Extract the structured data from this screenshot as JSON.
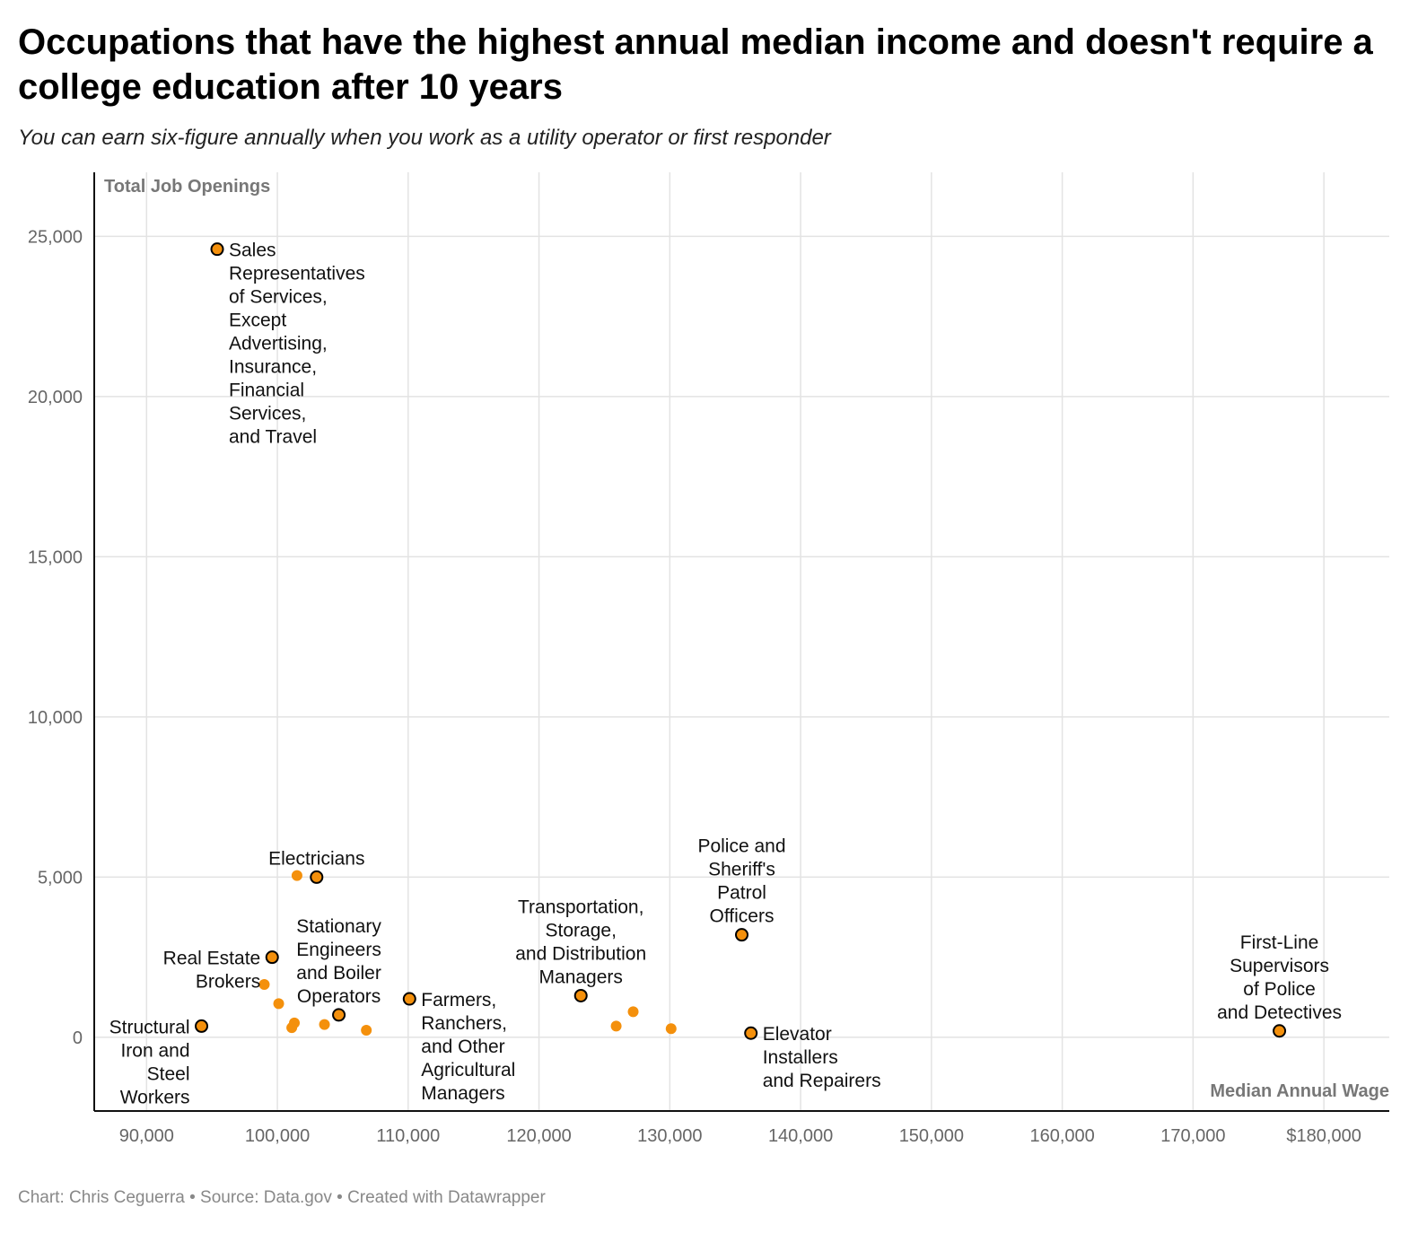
{
  "title": "Occupations that have the highest annual median income and doesn't require a college education after 10 years",
  "subtitle": "You can earn six-figure annually when you work as a utility operator or first responder",
  "footer": "Chart: Chris Ceguerra • Source: Data.gov • Created with Datawrapper",
  "colors": {
    "point": "#f4900c",
    "outline": "#000000",
    "grid": "#e3e3e3"
  },
  "chart_data": {
    "type": "scatter",
    "xlabel": "Median Annual Wage",
    "ylabel": "Total Job Openings",
    "xlim": [
      86000,
      185000
    ],
    "ylim": [
      -2300,
      27000
    ],
    "x_ticks": [
      {
        "value": 90000,
        "label": "90,000"
      },
      {
        "value": 100000,
        "label": "100,000"
      },
      {
        "value": 110000,
        "label": "110,000"
      },
      {
        "value": 120000,
        "label": "120,000"
      },
      {
        "value": 130000,
        "label": "130,000"
      },
      {
        "value": 140000,
        "label": "140,000"
      },
      {
        "value": 150000,
        "label": "150,000"
      },
      {
        "value": 160000,
        "label": "160,000"
      },
      {
        "value": 170000,
        "label": "170,000"
      },
      {
        "value": 180000,
        "label": "$180,000"
      }
    ],
    "y_ticks": [
      {
        "value": 0,
        "label": "0"
      },
      {
        "value": 5000,
        "label": "5,000"
      },
      {
        "value": 10000,
        "label": "10,000"
      },
      {
        "value": 15000,
        "label": "15,000"
      },
      {
        "value": 20000,
        "label": "20,000"
      },
      {
        "value": 25000,
        "label": "25,000"
      }
    ],
    "points": [
      {
        "x": 95400,
        "y": 24600,
        "highlight": true,
        "label": [
          "Sales",
          "Representatives",
          "of Services,",
          "Except",
          "Advertising,",
          "Insurance,",
          "Financial",
          "Services,",
          "and Travel"
        ],
        "label_side": "right"
      },
      {
        "x": 103000,
        "y": 5000,
        "highlight": true,
        "label": [
          "Electricians"
        ],
        "label_side": "above"
      },
      {
        "x": 101500,
        "y": 5050,
        "highlight": false
      },
      {
        "x": 99600,
        "y": 2500,
        "highlight": true,
        "label": [
          "Real Estate",
          "Brokers"
        ],
        "label_side": "left"
      },
      {
        "x": 104700,
        "y": 700,
        "highlight": true,
        "label": [
          "Stationary",
          "Engineers",
          "and Boiler",
          "Operators"
        ],
        "label_side": "above"
      },
      {
        "x": 94200,
        "y": 350,
        "highlight": true,
        "label": [
          "Structural",
          "Iron and",
          "Steel",
          "Workers"
        ],
        "label_side": "left"
      },
      {
        "x": 110100,
        "y": 1200,
        "highlight": true,
        "label": [
          "Farmers,",
          "Ranchers,",
          "and Other",
          "Agricultural",
          "Managers"
        ],
        "label_side": "right"
      },
      {
        "x": 123200,
        "y": 1300,
        "highlight": true,
        "label": [
          "Transportation,",
          "Storage,",
          "and Distribution",
          "Managers"
        ],
        "label_side": "above"
      },
      {
        "x": 135500,
        "y": 3200,
        "highlight": true,
        "label": [
          "Police and",
          "Sheriff's",
          "Patrol",
          "Officers"
        ],
        "label_side": "above"
      },
      {
        "x": 136200,
        "y": 130,
        "highlight": true,
        "label": [
          "Elevator",
          "Installers",
          "and Repairers"
        ],
        "label_side": "right"
      },
      {
        "x": 176600,
        "y": 200,
        "highlight": true,
        "label": [
          "First-Line",
          "Supervisors",
          "of Police",
          "and Detectives"
        ],
        "label_side": "above"
      },
      {
        "x": 99000,
        "y": 1650,
        "highlight": false
      },
      {
        "x": 100100,
        "y": 1050,
        "highlight": false
      },
      {
        "x": 101300,
        "y": 450,
        "highlight": false
      },
      {
        "x": 101100,
        "y": 300,
        "highlight": false
      },
      {
        "x": 103600,
        "y": 400,
        "highlight": false
      },
      {
        "x": 106800,
        "y": 220,
        "highlight": false
      },
      {
        "x": 125900,
        "y": 350,
        "highlight": false
      },
      {
        "x": 127200,
        "y": 800,
        "highlight": false
      },
      {
        "x": 130100,
        "y": 270,
        "highlight": false
      }
    ]
  }
}
